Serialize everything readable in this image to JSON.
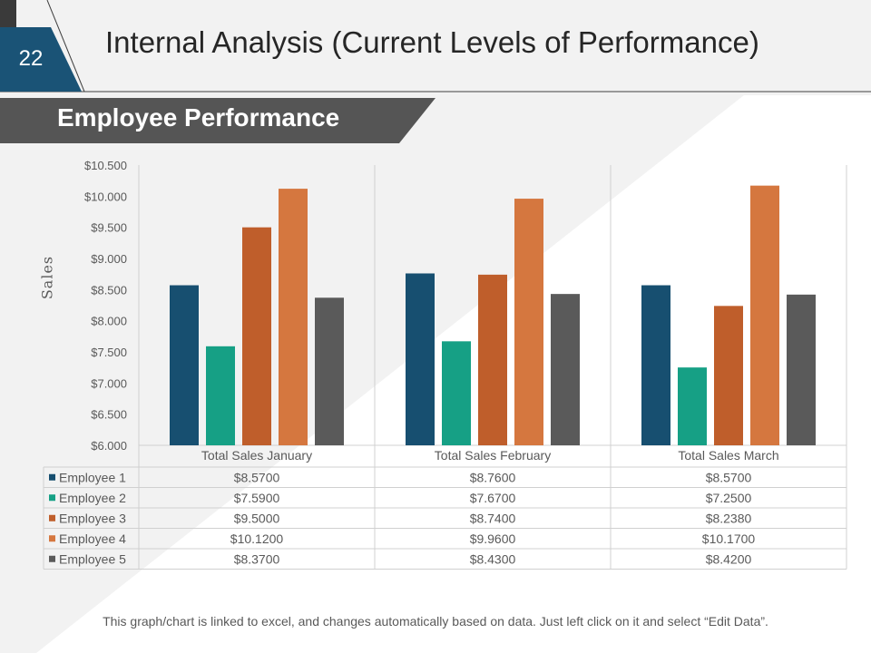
{
  "slide": {
    "number": "22",
    "title": "Internal Analysis (Current Levels of Performance)",
    "section_title": "Employee Performance",
    "footer": "This graph/chart is linked to excel, and changes automatically based on data. Just left click on it and select “Edit Data”."
  },
  "colors": {
    "dark_blue": "#174f70",
    "slide_num_bg": "#1a5376",
    "banner": "#555555"
  },
  "chart_data": {
    "type": "bar",
    "title": "",
    "xlabel": "",
    "ylabel": "Sales",
    "ylim": [
      6.0,
      10.5
    ],
    "yticks": [
      "$10.500",
      "$10.000",
      "$9.500",
      "$9.000",
      "$8.500",
      "$8.000",
      "$7.500",
      "$7.000",
      "$6.500",
      "$6.000"
    ],
    "ytick_values": [
      10.5,
      10.0,
      9.5,
      9.0,
      8.5,
      8.0,
      7.5,
      7.0,
      6.5,
      6.0
    ],
    "categories": [
      "Total Sales January",
      "Total Sales February",
      "Total Sales March"
    ],
    "series": [
      {
        "name": "Employee 1",
        "color": "#174f70",
        "values": [
          8.57,
          8.76,
          8.57
        ],
        "labels": [
          "$8.5700",
          "$8.7600",
          "$8.5700"
        ]
      },
      {
        "name": "Employee 2",
        "color": "#16a085",
        "values": [
          7.59,
          7.67,
          7.25
        ],
        "labels": [
          "$7.5900",
          "$7.6700",
          "$7.2500"
        ]
      },
      {
        "name": "Employee 3",
        "color": "#bf5e2b",
        "values": [
          9.5,
          8.74,
          8.238
        ],
        "labels": [
          "$9.5000",
          "$8.7400",
          "$8.2380"
        ]
      },
      {
        "name": "Employee 4",
        "color": "#d5773f",
        "values": [
          10.12,
          9.96,
          10.17
        ],
        "labels": [
          "$10.1200",
          "$9.9600",
          "$10.1700"
        ]
      },
      {
        "name": "Employee 5",
        "color": "#5a5a5a",
        "values": [
          8.37,
          8.43,
          8.42
        ],
        "labels": [
          "$8.3700",
          "$8.4300",
          "$8.4200"
        ]
      }
    ],
    "legend": "data-table"
  }
}
